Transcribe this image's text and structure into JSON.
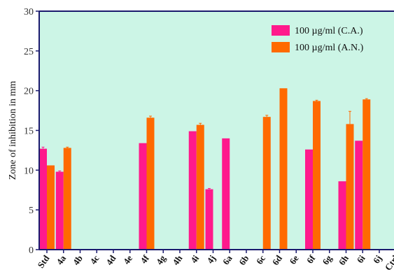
{
  "chart_data": {
    "type": "bar",
    "title": "",
    "xlabel": "",
    "ylabel": "Zone of inhibition in mm",
    "ylim": [
      0,
      30
    ],
    "yticks": [
      0,
      5,
      10,
      15,
      20,
      25,
      30
    ],
    "grid": false,
    "legend_position": "top-right",
    "categories": [
      "Std",
      "4a",
      "4b",
      "4c",
      "4d",
      "4e",
      "4f",
      "4g",
      "4h",
      "4i",
      "4j",
      "6a",
      "6b",
      "6c",
      "6d",
      "6e",
      "6f",
      "6g",
      "6h",
      "6i",
      "6j",
      "Ctrl"
    ],
    "series": [
      {
        "name": "100 µg/ml (C.A.)",
        "color": "#ff1a8c",
        "values": [
          12.7,
          9.8,
          0,
          0,
          0,
          0,
          13.4,
          0,
          0,
          14.9,
          7.6,
          14.0,
          0,
          0,
          0,
          0,
          12.6,
          0,
          8.6,
          13.7,
          0,
          0
        ],
        "errors": [
          0.2,
          0.1,
          0,
          0,
          0,
          0,
          0,
          0,
          0,
          0,
          0.1,
          0,
          0,
          0,
          0,
          0,
          0,
          0,
          0,
          0,
          0,
          0
        ]
      },
      {
        "name": "100 µg/ml (A.N.)",
        "color": "#ff6a00",
        "values": [
          10.6,
          12.8,
          0,
          0,
          0,
          0,
          16.6,
          0,
          0,
          15.7,
          0,
          0,
          0,
          16.7,
          20.3,
          0,
          18.7,
          0,
          15.8,
          18.9,
          0,
          0
        ],
        "errors": [
          0,
          0.1,
          0,
          0,
          0,
          0,
          0.2,
          0,
          0,
          0.2,
          0,
          0,
          0,
          0.2,
          0,
          0,
          0.1,
          0,
          1.6,
          0.1,
          0,
          0
        ]
      }
    ],
    "colors": {
      "plot_background": "#ccf5e6",
      "axis": "#1a1a6e"
    }
  }
}
